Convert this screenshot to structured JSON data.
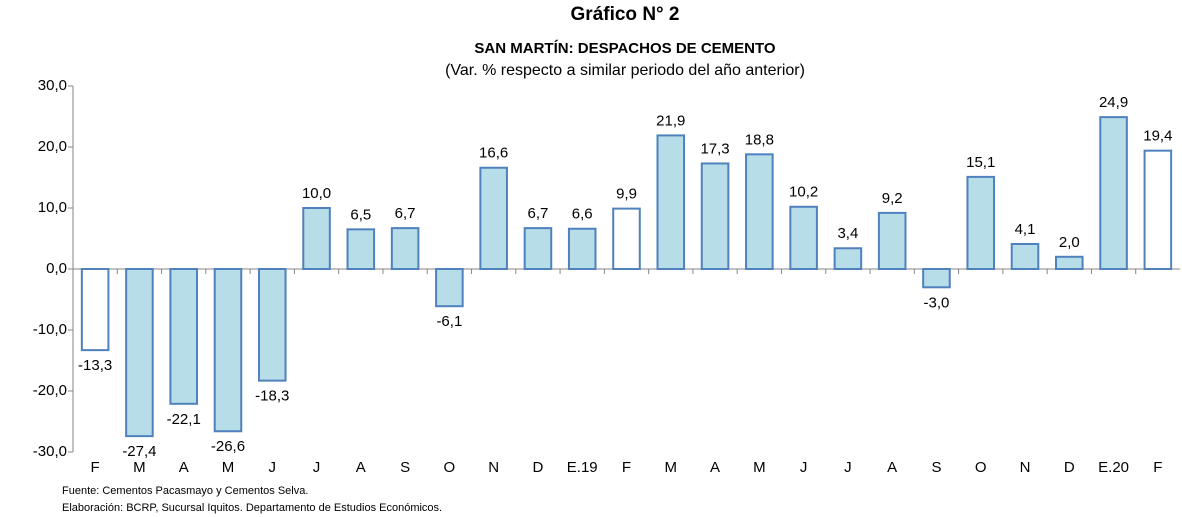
{
  "chart_data": {
    "type": "bar",
    "title": "Gráfico N° 2",
    "subtitle": "SAN MARTÍN: DESPACHOS DE CEMENTO",
    "unit_note": "(Var. % respecto a similar periodo del año anterior)",
    "categories": [
      "F",
      "M",
      "A",
      "M",
      "J",
      "J",
      "A",
      "S",
      "O",
      "N",
      "D",
      "E.19",
      "F",
      "M",
      "A",
      "M",
      "J",
      "J",
      "A",
      "S",
      "O",
      "N",
      "D",
      "E.20",
      "F"
    ],
    "values": [
      -13.3,
      -27.4,
      -22.1,
      -26.6,
      -18.3,
      10.0,
      6.5,
      6.7,
      -6.1,
      16.6,
      6.7,
      6.6,
      9.9,
      21.9,
      17.3,
      18.8,
      10.2,
      3.4,
      9.2,
      -3.0,
      15.1,
      4.1,
      2.0,
      24.9,
      19.4
    ],
    "value_labels": [
      "-13,3",
      "-27,4",
      "-22,1",
      "-26,6",
      "-18,3",
      "10,0",
      "6,5",
      "6,7",
      "-6,1",
      "16,6",
      "6,7",
      "6,6",
      "9,9",
      "21,9",
      "17,3",
      "18,8",
      "10,2",
      "3,4",
      "9,2",
      "-3,0",
      "15,1",
      "4,1",
      "2,0",
      "24,9",
      "19,4"
    ],
    "colors": [
      "#ffffff",
      "#b7dde8",
      "#b7dde8",
      "#b7dde8",
      "#b7dde8",
      "#b7dde8",
      "#b7dde8",
      "#b7dde8",
      "#b7dde8",
      "#b7dde8",
      "#b7dde8",
      "#b7dde8",
      "#ffffff",
      "#b7dde8",
      "#b7dde8",
      "#b7dde8",
      "#b7dde8",
      "#b7dde8",
      "#b7dde8",
      "#b7dde8",
      "#b7dde8",
      "#b7dde8",
      "#b7dde8",
      "#b7dde8",
      "#ffffff"
    ],
    "edgecolor": "#4f81bd",
    "ylim": [
      -30,
      30
    ],
    "yticks": [
      {
        "value": -30,
        "label": "-30,0"
      },
      {
        "value": -20,
        "label": "-20,0"
      },
      {
        "value": -10,
        "label": "-10,0"
      },
      {
        "value": 0,
        "label": "0,0"
      },
      {
        "value": 10,
        "label": "10,0"
      },
      {
        "value": 20,
        "label": "20,0"
      },
      {
        "value": 30,
        "label": "30,0"
      }
    ],
    "grid": false,
    "notes": [
      "Fuente: Cementos Pacasmayo y Cementos Selva.",
      "Elaboración: BCRP, Sucursal Iquitos. Departamento de Estudios Económicos."
    ]
  }
}
